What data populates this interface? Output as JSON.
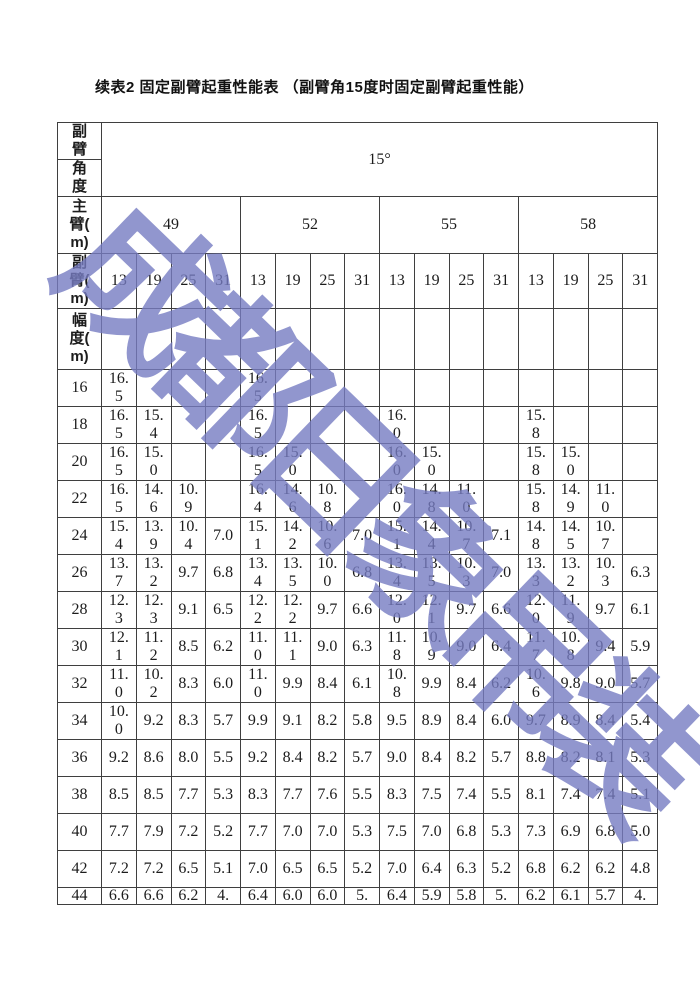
{
  "title": "续表2 固定副臂起重性能表 （副臂角15度时固定副臂起重性能）",
  "watermark_text": "成都日象吊装",
  "colors": {
    "watermark": "#767cc2",
    "border": "#3f3f3f",
    "text": "#1c1c1c"
  },
  "table": {
    "corner_labels": {
      "jib_angle_top": "副\n臂",
      "jib_angle_bottom": "角\n度",
      "main_boom": "主\n臂(\nm)",
      "jib": "副\n臂(\nm)",
      "radius": "幅\n度(\nm)"
    },
    "angle_value": "15°",
    "main_boom_lengths": [
      "49",
      "52",
      "55",
      "58"
    ],
    "jib_lengths": [
      "13",
      "19",
      "25",
      "31"
    ],
    "rows": [
      {
        "radius": "16",
        "values": [
          "16.5",
          "",
          "",
          "",
          "16.5",
          "",
          "",
          "",
          "",
          "",
          "",
          "",
          "",
          "",
          "",
          ""
        ]
      },
      {
        "radius": "18",
        "values": [
          "16.5",
          "15.4",
          "",
          "",
          "16.5",
          "",
          "",
          "",
          "16.0",
          "",
          "",
          "",
          "15.8",
          "",
          "",
          ""
        ]
      },
      {
        "radius": "20",
        "values": [
          "16.5",
          "15.0",
          "",
          "",
          "16.5",
          "15.0",
          "",
          "",
          "16.0",
          "15.0",
          "",
          "",
          "15.8",
          "15.0",
          "",
          ""
        ]
      },
      {
        "radius": "22",
        "values": [
          "16.5",
          "14.6",
          "10.9",
          "",
          "16.4",
          "14.6",
          "10.8",
          "",
          "16.0",
          "14.8",
          "11.0",
          "",
          "15.8",
          "14.9",
          "11.0",
          ""
        ]
      },
      {
        "radius": "24",
        "values": [
          "15.4",
          "13.9",
          "10.4",
          "7.0",
          "15.1",
          "14.2",
          "10.6",
          "7.0",
          "15.1",
          "14.4",
          "10.7",
          "7.1",
          "14.8",
          "14.5",
          "10.7",
          ""
        ]
      },
      {
        "radius": "26",
        "values": [
          "13.7",
          "13.2",
          "9.7",
          "6.8",
          "13.4",
          "13.5",
          "10.0",
          "6.8",
          "13.4",
          "13.5",
          "10.3",
          "7.0",
          "13.3",
          "13.2",
          "10.3",
          "6.3"
        ]
      },
      {
        "radius": "28",
        "values": [
          "12.3",
          "12.3",
          "9.1",
          "6.5",
          "12.2",
          "12.2",
          "9.7",
          "6.6",
          "12.0",
          "12.1",
          "9.7",
          "6.6",
          "12.0",
          "11.9",
          "9.7",
          "6.1"
        ]
      },
      {
        "radius": "30",
        "values": [
          "12.1",
          "11.2",
          "8.5",
          "6.2",
          "11.0",
          "11.1",
          "9.0",
          "6.3",
          "11.8",
          "10.9",
          "9.0",
          "6.4",
          "11.7",
          "10.8",
          "9.4",
          "5.9"
        ]
      },
      {
        "radius": "32",
        "values": [
          "11.0",
          "10.2",
          "8.3",
          "6.0",
          "11.0",
          "9.9",
          "8.4",
          "6.1",
          "10.8",
          "9.9",
          "8.4",
          "6.2",
          "10.6",
          "9.8",
          "9.0",
          "5.7"
        ]
      },
      {
        "radius": "34",
        "values": [
          "10.0",
          "9.2",
          "8.3",
          "5.7",
          "9.9",
          "9.1",
          "8.2",
          "5.8",
          "9.5",
          "8.9",
          "8.4",
          "6.0",
          "9.7",
          "8.9",
          "8.4",
          "5.4"
        ]
      },
      {
        "radius": "36",
        "values": [
          "9.2",
          "8.6",
          "8.0",
          "5.5",
          "9.2",
          "8.4",
          "8.2",
          "5.7",
          "9.0",
          "8.4",
          "8.2",
          "5.7",
          "8.8",
          "8.2",
          "8.1",
          "5.3"
        ]
      },
      {
        "radius": "38",
        "values": [
          "8.5",
          "8.5",
          "7.7",
          "5.3",
          "8.3",
          "7.7",
          "7.6",
          "5.5",
          "8.3",
          "7.5",
          "7.4",
          "5.5",
          "8.1",
          "7.4",
          "7.4",
          "5.1"
        ]
      },
      {
        "radius": "40",
        "values": [
          "7.7",
          "7.9",
          "7.2",
          "5.2",
          "7.7",
          "7.0",
          "7.0",
          "5.3",
          "7.5",
          "7.0",
          "6.8",
          "5.3",
          "7.3",
          "6.9",
          "6.8",
          "5.0"
        ]
      },
      {
        "radius": "42",
        "values": [
          "7.2",
          "7.2",
          "6.5",
          "5.1",
          "7.0",
          "6.5",
          "6.5",
          "5.2",
          "7.0",
          "6.4",
          "6.3",
          "5.2",
          "6.8",
          "6.2",
          "6.2",
          "4.8"
        ]
      },
      {
        "radius": "44",
        "values": [
          "6.6",
          "6.6",
          "6.2",
          "4.",
          "6.4",
          "6.0",
          "6.0",
          "5.",
          "6.4",
          "5.9",
          "5.8",
          "5.",
          "6.2",
          "6.1",
          "5.7",
          "4."
        ]
      }
    ]
  }
}
